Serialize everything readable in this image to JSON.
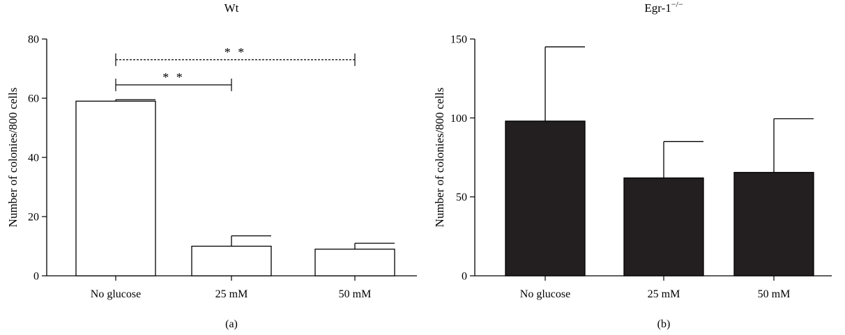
{
  "chart_data": [
    {
      "type": "bar",
      "title": "Wt",
      "title_superscript": "",
      "panel_label": "(a)",
      "categories": [
        "No glucose",
        "25 mM",
        "50 mM"
      ],
      "values": [
        59,
        10,
        9
      ],
      "errors": [
        0.5,
        3.5,
        2
      ],
      "ylabel": "Number of colonies/800 cells",
      "xlabel": "",
      "ylim": [
        0,
        80
      ],
      "yticks": [
        "0",
        "20",
        "40",
        "60",
        "80"
      ],
      "bar_color": "#ffffff",
      "bar_edge": "#000000",
      "significance": [
        {
          "from": 0,
          "to": 2,
          "label": "* *",
          "style": "dashed",
          "level": 73
        },
        {
          "from": 0,
          "to": 1,
          "label": "* *",
          "style": "solid",
          "level": 64.5
        }
      ]
    },
    {
      "type": "bar",
      "title": "Egr-1",
      "title_superscript": "−/−",
      "panel_label": "(b)",
      "categories": [
        "No glucose",
        "25 mM",
        "50 mM"
      ],
      "values": [
        98,
        62,
        65.5
      ],
      "errors": [
        47,
        23,
        34
      ],
      "ylabel": "Number of colonies/800 cells",
      "xlabel": "",
      "ylim": [
        0,
        150
      ],
      "yticks": [
        "0",
        "50",
        "100",
        "150"
      ],
      "bar_color": "#231f20",
      "bar_edge": "#000000",
      "significance": []
    }
  ]
}
